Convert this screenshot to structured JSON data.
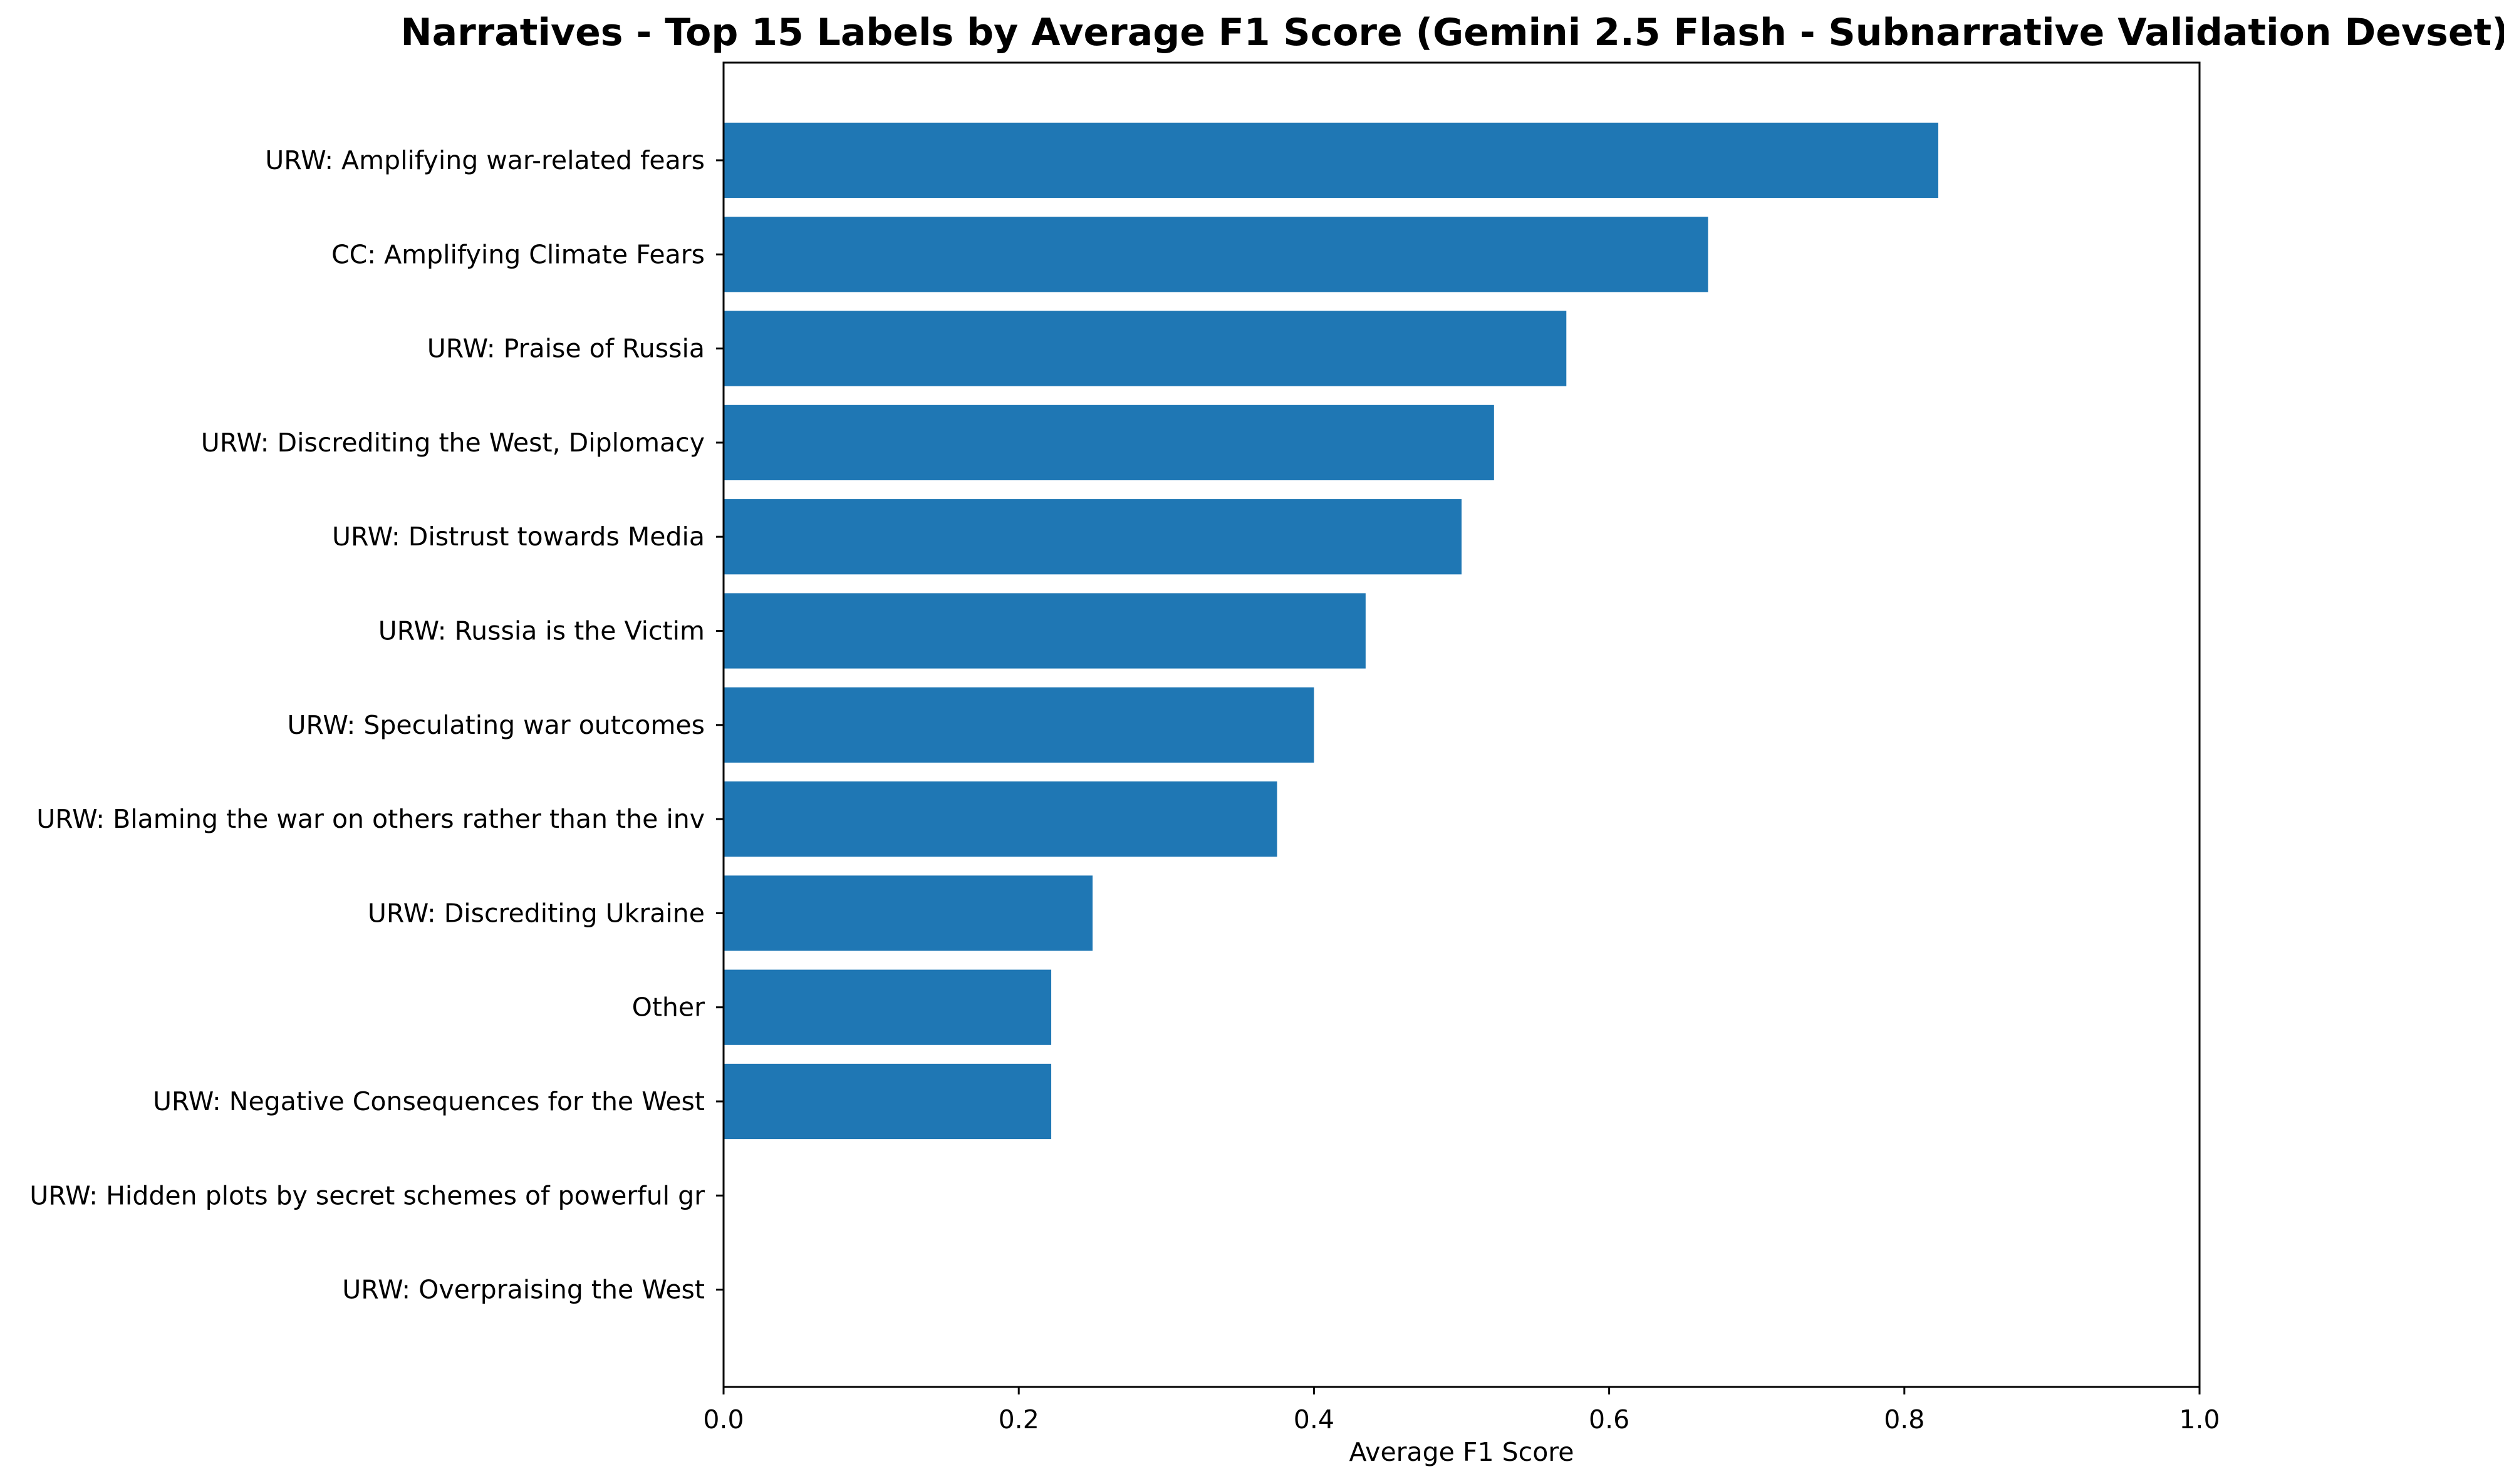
{
  "chart_data": {
    "type": "bar",
    "orientation": "horizontal",
    "title": "Narratives - Top 15 Labels by Average F1 Score (Gemini 2.5 Flash - Subnarrative Validation Devset)",
    "xlabel": "Average F1 Score",
    "ylabel": "",
    "xlim": [
      0,
      1.0
    ],
    "xticks": [
      "0.0",
      "0.2",
      "0.4",
      "0.6",
      "0.8",
      "1.0"
    ],
    "bar_color": "#1f77b4",
    "grid": false,
    "categories": [
      "URW: Amplifying war-related fears",
      "CC: Amplifying Climate Fears",
      "URW: Praise of Russia",
      "URW: Discrediting the West, Diplomacy",
      "URW: Distrust towards Media",
      "URW: Russia is the Victim",
      "URW: Speculating war outcomes",
      "URW: Blaming the war on others rather than the inv",
      "URW: Discrediting Ukraine",
      "Other",
      "URW: Negative Consequences for the West",
      "URW: Hidden plots by secret schemes of powerful gr",
      "URW: Overpraising the West"
    ],
    "values": [
      0.823,
      0.667,
      0.571,
      0.522,
      0.5,
      0.435,
      0.4,
      0.375,
      0.25,
      0.222,
      0.222,
      0.0,
      0.0
    ]
  }
}
